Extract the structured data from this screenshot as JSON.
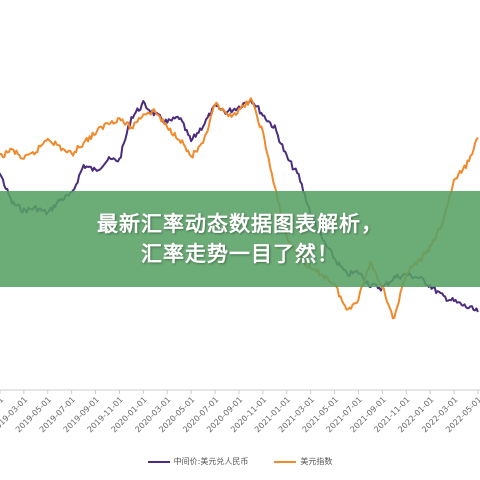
{
  "banner": {
    "line1": "最新汇率动态数据图表解析，",
    "line2": "汇率走势一目了然！"
  },
  "colors": {
    "series1": "#4b2c7e",
    "series2": "#f08a2c",
    "banner": "#58a064",
    "axis": "#cccccc"
  },
  "chart_data": {
    "type": "line",
    "title": "",
    "xlabel": "",
    "ylabel": "",
    "x_tick_labels": [
      "2019-01-01",
      "2019-03-01",
      "2019-05-01",
      "2019-07-01",
      "2019-09-01",
      "2019-11-01",
      "2020-01-01",
      "2020-03-01",
      "2020-05-01",
      "2020-07-01",
      "2020-09-01",
      "2020-11-01",
      "2021-01-01",
      "2021-03-01",
      "2021-05-01",
      "2021-07-01",
      "2021-09-01",
      "2021-11-01",
      "2022-01-01",
      "2022-03-01",
      "2022-05-01"
    ],
    "x_tick_labels_partial": [
      "2018-11-01"
    ],
    "legend_position": "bottom",
    "grid": false,
    "y_axis_labels_shown": false,
    "series": [
      {
        "name": "中间价:美元兑人民币",
        "color": "#4b2c7e",
        "x_month_index": [
          0,
          1,
          2,
          3,
          4,
          5,
          6,
          7,
          8,
          9,
          10,
          11,
          12,
          13,
          14,
          15,
          16,
          17,
          18,
          19,
          20,
          21,
          22,
          23,
          24,
          25,
          26,
          27,
          28,
          29,
          30,
          31,
          32,
          33,
          34,
          35,
          36,
          37,
          38,
          39,
          40,
          41
        ],
        "values": [
          6.88,
          6.85,
          6.74,
          6.71,
          6.72,
          6.7,
          6.75,
          6.77,
          6.88,
          6.86,
          6.9,
          6.9,
          7.06,
          7.11,
          7.07,
          7.04,
          7.06,
          6.97,
          7.03,
          7.1,
          7.08,
          7.1,
          7.13,
          7.07,
          7.02,
          6.91,
          6.84,
          6.7,
          6.6,
          6.53,
          6.47,
          6.48,
          6.43,
          6.42,
          6.46,
          6.47,
          6.46,
          6.43,
          6.39,
          6.37,
          6.35,
          6.33
        ]
      },
      {
        "name": "美元指数",
        "color": "#f08a2c",
        "x_month_index": [
          0,
          1,
          2,
          3,
          4,
          5,
          6,
          7,
          8,
          9,
          10,
          11,
          12,
          13,
          14,
          15,
          16,
          17,
          18,
          19,
          20,
          21,
          22,
          23,
          24,
          25,
          26,
          27,
          28,
          29,
          30,
          31,
          32,
          33,
          34,
          35,
          36,
          37,
          38,
          39,
          40,
          41
        ],
        "values": [
          96.5,
          96.8,
          97.1,
          96.7,
          97.0,
          97.6,
          97.2,
          96.9,
          97.4,
          97.8,
          98.2,
          98.4,
          98.0,
          98.6,
          98.7,
          98.0,
          97.6,
          96.8,
          97.3,
          99.0,
          98.5,
          98.7,
          99.2,
          97.8,
          95.5,
          93.4,
          92.7,
          92.1,
          91.9,
          91.5,
          90.4,
          90.9,
          92.4,
          91.4,
          90.0,
          92.0,
          92.4,
          93.0,
          94.0,
          95.8,
          96.4,
          97.6
        ]
      }
    ]
  }
}
